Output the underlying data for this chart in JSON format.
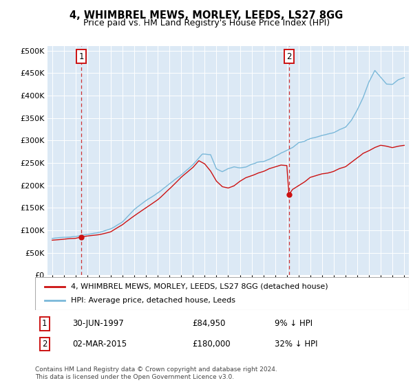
{
  "title": "4, WHIMBREL MEWS, MORLEY, LEEDS, LS27 8GG",
  "subtitle": "Price paid vs. HM Land Registry's House Price Index (HPI)",
  "legend_line1": "4, WHIMBREL MEWS, MORLEY, LEEDS, LS27 8GG (detached house)",
  "legend_line2": "HPI: Average price, detached house, Leeds",
  "annotation1": {
    "num": "1",
    "date": "30-JUN-1997",
    "price": "£84,950",
    "pct": "9% ↓ HPI"
  },
  "annotation2": {
    "num": "2",
    "date": "02-MAR-2015",
    "price": "£180,000",
    "pct": "32% ↓ HPI"
  },
  "vline1_year": 1997.5,
  "vline2_year": 2015.17,
  "point1_year": 1997.5,
  "point1_val": 84950,
  "point2_year": 2015.17,
  "point2_val": 180000,
  "hpi_color": "#7ab8d9",
  "price_color": "#cc1111",
  "vline_color": "#cc1111",
  "bg_color": "#dce9f5",
  "grid_color": "#ffffff",
  "ylim": [
    0,
    510000
  ],
  "yticks": [
    0,
    50000,
    100000,
    150000,
    200000,
    250000,
    300000,
    350000,
    400000,
    450000,
    500000
  ],
  "footer": "Contains HM Land Registry data © Crown copyright and database right 2024.\nThis data is licensed under the Open Government Licence v3.0.",
  "start_year": 1995,
  "end_year": 2025
}
